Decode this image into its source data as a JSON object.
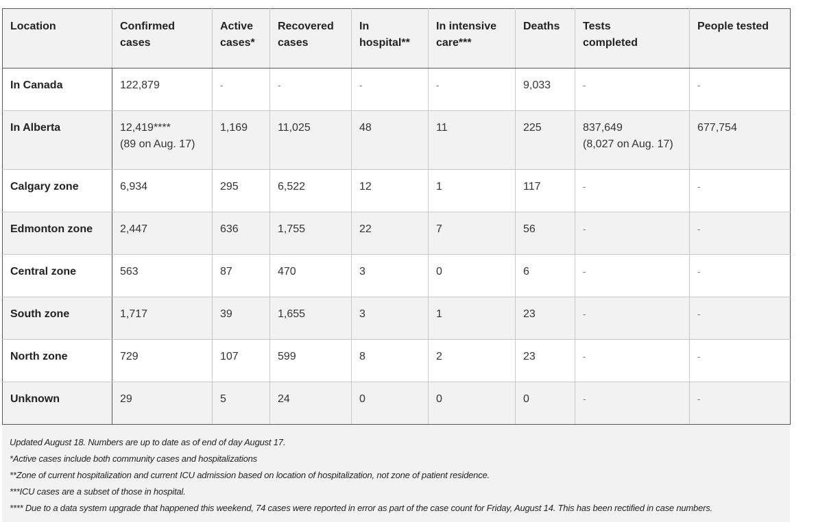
{
  "table": {
    "headers": [
      [
        "Location",
        ""
      ],
      [
        "Confirmed",
        "cases"
      ],
      [
        "Active",
        "cases*"
      ],
      [
        "Recovered",
        "cases"
      ],
      [
        "In",
        "hospital**"
      ],
      [
        "In intensive",
        "care***"
      ],
      [
        "Deaths",
        ""
      ],
      [
        "Tests",
        "completed"
      ],
      [
        "People tested",
        ""
      ]
    ],
    "rows": [
      {
        "location": "In Canada",
        "confirmed": "122,879",
        "confirmed_note": "",
        "active": "-",
        "recovered": "-",
        "hospital": "-",
        "icu": "-",
        "deaths": "9,033",
        "tests": "-",
        "tests_note": "",
        "people": "-"
      },
      {
        "location": "In Alberta",
        "confirmed": "12,419****",
        "confirmed_note": "(89 on Aug. 17)",
        "active": "1,169",
        "recovered": "11,025",
        "hospital": "48",
        "icu": "11",
        "deaths": "225",
        "tests": "837,649",
        "tests_note": "(8,027 on Aug. 17)",
        "people": "677,754"
      },
      {
        "location": "Calgary zone",
        "confirmed": "6,934",
        "confirmed_note": "",
        "active": "295",
        "recovered": "6,522",
        "hospital": "12",
        "icu": "1",
        "deaths": "117",
        "tests": "-",
        "tests_note": "",
        "people": "-"
      },
      {
        "location": "Edmonton zone",
        "confirmed": "2,447",
        "confirmed_note": "",
        "active": "636",
        "recovered": "1,755",
        "hospital": "22",
        "icu": "7",
        "deaths": "56",
        "tests": "-",
        "tests_note": "",
        "people": "-"
      },
      {
        "location": "Central zone",
        "confirmed": "563",
        "confirmed_note": "",
        "active": "87",
        "recovered": "470",
        "hospital": "3",
        "icu": "0",
        "deaths": "6",
        "tests": "-",
        "tests_note": "",
        "people": "-"
      },
      {
        "location": "South zone",
        "confirmed": "1,717",
        "confirmed_note": "",
        "active": "39",
        "recovered": "1,655",
        "hospital": "3",
        "icu": "1",
        "deaths": "23",
        "tests": "-",
        "tests_note": "",
        "people": "-"
      },
      {
        "location": "North zone",
        "confirmed": "729",
        "confirmed_note": "",
        "active": "107",
        "recovered": "599",
        "hospital": "8",
        "icu": "2",
        "deaths": "23",
        "tests": "-",
        "tests_note": "",
        "people": "-"
      },
      {
        "location": "Unknown",
        "confirmed": "29",
        "confirmed_note": "",
        "active": "5",
        "recovered": "24",
        "hospital": "0",
        "icu": "0",
        "deaths": "0",
        "tests": "-",
        "tests_note": "",
        "people": "-"
      }
    ]
  },
  "notes": [
    "Updated August 18. Numbers are up to date as of end of day August 17.",
    "*Active cases include both community cases and hospitalizations",
    "**Zone of current hospitalization and current ICU admission based on location of hospitalization, not zone of patient residence.",
    "***ICU cases are a subset of those in hospital.",
    "**** Due to a data system upgrade that happened this weekend, 74 cases were reported in error as part of the case count for Friday, August 14. This has been rectified in case numbers."
  ]
}
